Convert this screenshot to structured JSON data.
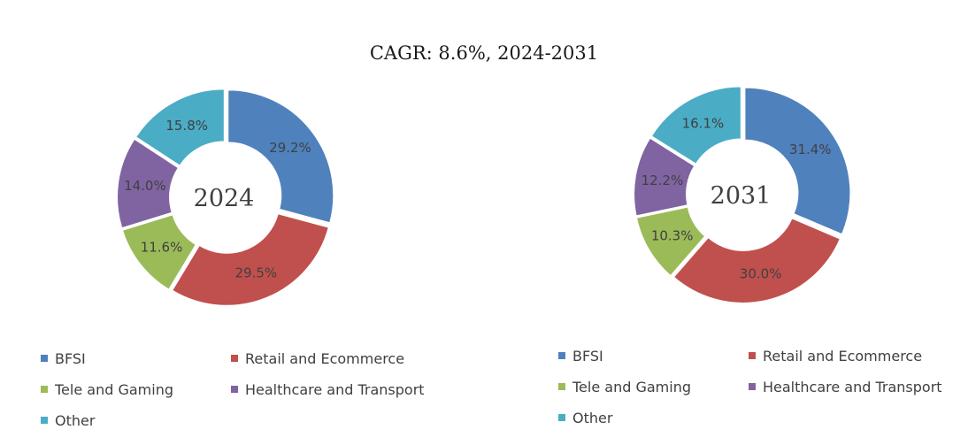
{
  "title": "CAGR:   8.6%, 2024-2031",
  "colors": {
    "BFSI": "#4f81bd",
    "Retail and Ecommerce": "#c0504d",
    "Tele and Gaming": "#9bbb59",
    "Healthcare and Transport": "#8064a2",
    "Other": "#4bacc6"
  },
  "chart_data": [
    {
      "type": "pie",
      "center_label": "2024",
      "categories": [
        "BFSI",
        "Retail and Ecommerce",
        "Tele and Gaming",
        "Healthcare and Transport",
        "Other"
      ],
      "values": [
        29.2,
        29.5,
        11.6,
        14.0,
        15.8
      ],
      "labels": [
        "29.2%",
        "29.5%",
        "11.6%",
        "14.0%",
        "15.8%"
      ],
      "legend": [
        "BFSI",
        "Retail and Ecommerce",
        "Tele and Gaming",
        "Healthcare and Transport",
        "Other"
      ]
    },
    {
      "type": "pie",
      "center_label": "2031",
      "categories": [
        "BFSI",
        "Retail and Ecommerce",
        "Tele and Gaming",
        "Healthcare and Transport",
        "Other"
      ],
      "values": [
        31.4,
        30.0,
        10.3,
        12.2,
        16.1
      ],
      "labels": [
        "31.4%",
        "30.0%",
        "10.3%",
        "12.2%",
        "16.1%"
      ],
      "legend": [
        "BFSI",
        "Retail and Ecommerce",
        "Tele and Gaming",
        "Healthcare and Transport",
        "Other"
      ]
    }
  ]
}
